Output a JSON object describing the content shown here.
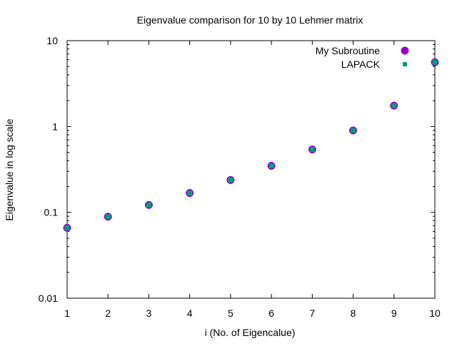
{
  "chart_data": {
    "type": "scatter",
    "title": "Eigenvalue comparison for 10 by 10 Lehmer matrix",
    "xlabel": "i (No. of Eigencalue)",
    "ylabel": "Eigenvalue in log scale",
    "xlim": [
      1,
      10
    ],
    "ylim": [
      0.01,
      10
    ],
    "yscale": "log",
    "grid": false,
    "legend_position": "top-right",
    "x_ticks": [
      "1",
      "2",
      "3",
      "4",
      "5",
      "6",
      "7",
      "8",
      "9",
      "10"
    ],
    "y_ticks": [
      "0.01",
      "0.1",
      "1",
      "10"
    ],
    "x": [
      1,
      2,
      3,
      4,
      5,
      6,
      7,
      8,
      9,
      10
    ],
    "series": [
      {
        "name": "My Subroutine",
        "marker": "circle",
        "color": "#9400d3",
        "values": [
          0.066,
          0.089,
          0.122,
          0.168,
          0.238,
          0.348,
          0.54,
          0.9,
          1.75,
          5.6
        ]
      },
      {
        "name": "LAPACK",
        "marker": "square",
        "color": "#009e73",
        "values": [
          0.066,
          0.089,
          0.122,
          0.168,
          0.238,
          0.348,
          0.54,
          0.9,
          1.75,
          5.6
        ]
      }
    ]
  }
}
